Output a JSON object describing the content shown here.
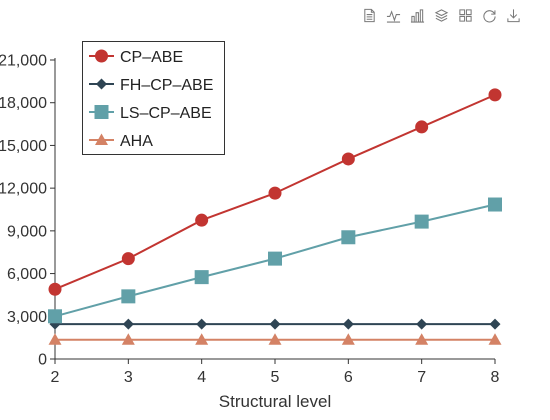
{
  "toolbar": {
    "icons": [
      "data-view-icon",
      "line-chart-icon",
      "bar-chart-icon",
      "stack-icon",
      "tiled-icon",
      "restore-icon",
      "save-image-icon"
    ]
  },
  "chart_data": {
    "type": "line",
    "title": "",
    "xlabel": "Structural level",
    "ylabel": "",
    "x": [
      2,
      3,
      4,
      5,
      6,
      7,
      8
    ],
    "xlim": [
      2,
      8
    ],
    "ylim": [
      0,
      21000
    ],
    "y_ticks": [
      0,
      3000,
      6000,
      9000,
      12000,
      15000,
      18000,
      21000
    ],
    "y_tick_labels": [
      "0",
      "3,000",
      "6,000",
      "9,000",
      "12,000",
      "15,000",
      "18,000",
      "21,000"
    ],
    "grid": false,
    "legend_position": "top-left",
    "series": [
      {
        "name": "CP–ABE",
        "color": "#c23531",
        "marker": "circle",
        "values": [
          4900,
          7050,
          9750,
          11650,
          14050,
          16300,
          18550
        ]
      },
      {
        "name": "FH–CP–ABE",
        "color": "#2f4554",
        "marker": "diamond",
        "values": [
          2450,
          2450,
          2450,
          2450,
          2450,
          2450,
          2450
        ]
      },
      {
        "name": "LS–CP–ABE",
        "color": "#61a0a8",
        "marker": "square",
        "values": [
          3000,
          4400,
          5750,
          7050,
          8550,
          9650,
          10850
        ]
      },
      {
        "name": "AHA",
        "color": "#d48265",
        "marker": "triangle",
        "values": [
          1350,
          1350,
          1350,
          1350,
          1350,
          1350,
          1350
        ]
      }
    ]
  }
}
